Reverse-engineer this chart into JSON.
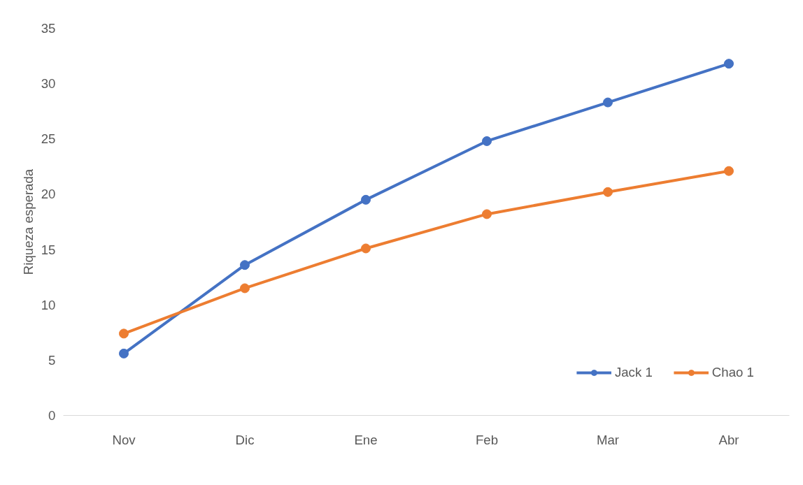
{
  "chart_data": {
    "type": "line",
    "ylabel": "Riqueza esperada",
    "categories": [
      "Nov",
      "Dic",
      "Ene",
      "Feb",
      "Mar",
      "Abr"
    ],
    "series": [
      {
        "name": "Jack 1",
        "color": "#4472c4",
        "values": [
          5.6,
          13.6,
          19.5,
          24.8,
          28.3,
          31.8
        ]
      },
      {
        "name": "Chao 1",
        "color": "#ed7d31",
        "values": [
          7.4,
          11.5,
          15.1,
          18.2,
          20.2,
          22.1
        ]
      }
    ],
    "ylim": [
      0,
      35
    ],
    "yticks": [
      0,
      5,
      10,
      15,
      20,
      25,
      30,
      35
    ],
    "grid": false,
    "legend": "bottom right",
    "marker": "circle",
    "line_style": "solid"
  }
}
